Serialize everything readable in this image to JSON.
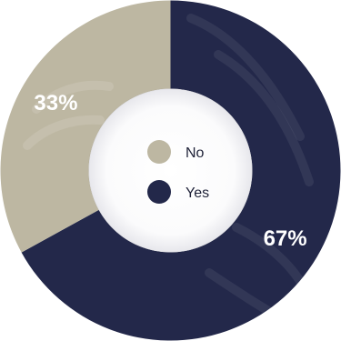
{
  "chart_data": {
    "type": "pie",
    "variant": "donut",
    "title": "",
    "slices": [
      {
        "label": "Yes",
        "value": 67,
        "value_label": "67%",
        "color": "#23284a"
      },
      {
        "label": "No",
        "value": 33,
        "value_label": "33%",
        "color": "#bdb7a2"
      }
    ],
    "legend": {
      "placement": "center",
      "order": [
        "No",
        "Yes"
      ]
    },
    "center_color": "#f7f7f8"
  }
}
